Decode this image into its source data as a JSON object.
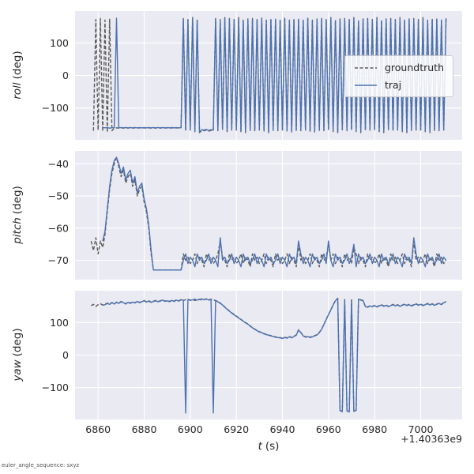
{
  "figure": {
    "background": "#ffffff",
    "axes_background": "#eaeaf2",
    "grid_color": "#ffffff",
    "tick_color": "#262626",
    "footer_note": "euler_angle_sequence: sxyz"
  },
  "legend": {
    "entries": [
      {
        "label": "groundtruth",
        "color": "#5a5a5a",
        "dash": true
      },
      {
        "label": "traj",
        "color": "#4c72b0",
        "dash": false
      }
    ]
  },
  "xaxis": {
    "x0": 6857,
    "dt": 1,
    "xlim": [
      6850,
      7018
    ],
    "xticks": [
      6860,
      6880,
      6900,
      6920,
      6940,
      6960,
      6980,
      7000
    ],
    "label_italic": "t",
    "label_unit": "(s)",
    "offset_text": "+1.40363e9"
  },
  "chart_data": [
    {
      "type": "line",
      "ylabel_italic": "roll",
      "ylabel_unit": "(deg)",
      "ylim": [
        -198,
        198
      ],
      "yticks": [
        100,
        0,
        -100
      ],
      "series": [
        {
          "name": "groundtruth",
          "color": "#5a5a5a",
          "dash": true,
          "y": [
            null,
            -170,
            172,
            -168,
            175,
            -172,
            170,
            -175,
            173,
            -170,
            -162,
            -161,
            -162,
            -161,
            -162,
            -161,
            -162,
            -161,
            -162,
            -161,
            -162,
            -161,
            -162,
            -161,
            -162,
            -161,
            -162,
            -161,
            -162,
            -161,
            -162,
            -161,
            -162,
            -161,
            -162,
            -161,
            -162,
            -161,
            -162,
            -161,
            175,
            -170,
            172,
            -168,
            178,
            -173,
            170,
            -176,
            -169,
            -170,
            -168,
            -171,
            -169,
            -170,
            175,
            -170,
            172,
            -168,
            178,
            -173,
            175,
            -170,
            172,
            -168,
            178,
            -173,
            170,
            -176,
            174,
            -169,
            175,
            -170,
            172,
            -168,
            178,
            -173,
            170,
            -176,
            174,
            -169,
            175,
            -170,
            172,
            -168,
            178,
            -173,
            170,
            -176,
            174,
            -169,
            175,
            -170,
            172,
            -168,
            178,
            -173,
            170,
            -176,
            174,
            -169,
            175,
            -170,
            172,
            -168,
            178,
            -173,
            170,
            -176,
            174,
            -169,
            175,
            -170,
            172,
            -168,
            178,
            -173,
            170,
            -176,
            174,
            -169,
            175,
            -170,
            172,
            -168,
            178,
            -173,
            170,
            -176,
            174,
            -169,
            175,
            -170,
            172,
            -168,
            178,
            -173,
            170,
            -176,
            174,
            -169,
            175,
            -170,
            172,
            -168,
            178,
            -173,
            170,
            -176,
            174,
            -169,
            175,
            -170,
            172,
            -168,
            178
          ]
        },
        {
          "name": "traj",
          "color": "#4c72b0",
          "dash": false,
          "y": [
            null,
            null,
            null,
            null,
            null,
            -160,
            -161,
            -160,
            -162,
            -161,
            -160,
            176,
            -161,
            -160,
            -161,
            -160,
            -161,
            -160,
            -161,
            -160,
            -161,
            -160,
            -161,
            -160,
            -161,
            -160,
            -161,
            -160,
            -161,
            -160,
            -161,
            -160,
            -161,
            -160,
            -161,
            -160,
            -161,
            -160,
            -161,
            -160,
            173,
            -168,
            170,
            -166,
            176,
            -171,
            168,
            -174,
            -167,
            -168,
            -166,
            -169,
            -167,
            -168,
            173,
            -168,
            170,
            -166,
            176,
            -171,
            173,
            -168,
            170,
            -166,
            176,
            -171,
            168,
            -174,
            172,
            -167,
            173,
            -168,
            170,
            -166,
            176,
            -171,
            168,
            -174,
            172,
            -167,
            173,
            -168,
            170,
            -166,
            176,
            -171,
            168,
            -174,
            172,
            -167,
            173,
            -168,
            170,
            -166,
            176,
            -171,
            168,
            -174,
            172,
            -167,
            173,
            -168,
            170,
            -166,
            176,
            -171,
            168,
            -174,
            172,
            -167,
            173,
            -168,
            170,
            -166,
            176,
            -171,
            168,
            -174,
            172,
            -167,
            173,
            -168,
            170,
            -166,
            176,
            -171,
            168,
            -174,
            172,
            -167,
            173,
            -168,
            170,
            -166,
            176,
            -171,
            168,
            -174,
            172,
            -167,
            173,
            -168,
            170,
            -166,
            176,
            -171,
            168,
            -174,
            172,
            -167,
            173,
            -168,
            170,
            -166,
            176
          ]
        }
      ]
    },
    {
      "type": "line",
      "ylabel_italic": "pitch",
      "ylabel_unit": "(deg)",
      "ylim": [
        -76,
        -36
      ],
      "yticks": [
        -40,
        -50,
        -60,
        -70
      ],
      "series": [
        {
          "name": "groundtruth",
          "color": "#5a5a5a",
          "dash": true,
          "y": [
            -64,
            -67,
            -63,
            -68,
            -64,
            -66,
            -62,
            -55,
            -48,
            -43,
            -40,
            -38,
            -41,
            -44,
            -42,
            -46,
            -44,
            -43,
            -47,
            -45,
            -50,
            -48,
            -47,
            -52,
            -55,
            -60,
            -68,
            -73,
            -73,
            -73,
            -73,
            -73,
            -73,
            -73,
            -73,
            -73,
            -73,
            -73,
            -73,
            -73,
            -68,
            -70,
            -69,
            -71,
            -70,
            -68,
            -71,
            -69,
            -70,
            -72,
            -68,
            -70,
            -69,
            -71,
            -70,
            -68,
            -64,
            -69,
            -70,
            -72,
            -68,
            -70,
            -69,
            -71,
            -70,
            -68,
            -71,
            -69,
            -70,
            -72,
            -68,
            -70,
            -69,
            -71,
            -70,
            -68,
            -71,
            -69,
            -70,
            -72,
            -68,
            -70,
            -69,
            -71,
            -70,
            -68,
            -71,
            -69,
            -70,
            -72,
            -65,
            -70,
            -69,
            -71,
            -70,
            -68,
            -71,
            -69,
            -70,
            -72,
            -68,
            -70,
            -69,
            -65,
            -70,
            -68,
            -71,
            -69,
            -70,
            -72,
            -68,
            -70,
            -69,
            -71,
            -66,
            -68,
            -71,
            -69,
            -70,
            -72,
            -68,
            -70,
            -69,
            -71,
            -70,
            -68,
            -71,
            -69,
            -70,
            -72,
            -68,
            -70,
            -69,
            -71,
            -70,
            -68,
            -71,
            -69,
            -70,
            -72,
            -64,
            -70,
            -69,
            -71,
            -70,
            -68,
            -71,
            -69,
            -70,
            -72,
            -68,
            -70,
            -69,
            -71,
            -70
          ]
        },
        {
          "name": "traj",
          "color": "#4c72b0",
          "dash": false,
          "y": [
            null,
            null,
            null,
            null,
            null,
            -64,
            -61,
            -54,
            -47,
            -42,
            -39,
            -38,
            -40,
            -43,
            -41,
            -45,
            -43,
            -42,
            -46,
            -44,
            -49,
            -47,
            -46,
            -51,
            -54,
            -59,
            -67,
            -73,
            -73,
            -73,
            -73,
            -73,
            -73,
            -73,
            -73,
            -73,
            -73,
            -73,
            -73,
            -73,
            -70,
            -68,
            -71,
            -69,
            -70,
            -72,
            -68,
            -70,
            -69,
            -71,
            -70,
            -68,
            -71,
            -69,
            -70,
            -72,
            -63,
            -70,
            -69,
            -71,
            -70,
            -68,
            -71,
            -69,
            -70,
            -72,
            -68,
            -70,
            -69,
            -71,
            -70,
            -68,
            -71,
            -69,
            -70,
            -72,
            -68,
            -70,
            -69,
            -71,
            -70,
            -68,
            -71,
            -69,
            -70,
            -72,
            -68,
            -70,
            -69,
            -71,
            -64,
            -68,
            -71,
            -69,
            -70,
            -72,
            -68,
            -70,
            -69,
            -71,
            -70,
            -68,
            -71,
            -64,
            -70,
            -72,
            -68,
            -70,
            -69,
            -71,
            -70,
            -68,
            -71,
            -69,
            -65,
            -72,
            -68,
            -70,
            -69,
            -71,
            -70,
            -68,
            -71,
            -69,
            -70,
            -72,
            -68,
            -70,
            -69,
            -71,
            -70,
            -68,
            -71,
            -69,
            -70,
            -72,
            -68,
            -70,
            -69,
            -71,
            -63,
            -68,
            -71,
            -69,
            -70,
            -72,
            -68,
            -70,
            -69,
            -71,
            -70,
            -68,
            -71,
            -69,
            -70
          ]
        }
      ]
    },
    {
      "type": "line",
      "ylabel_italic": "yaw",
      "ylabel_unit": "(deg)",
      "ylim": [
        -198,
        198
      ],
      "yticks": [
        100,
        0,
        -100
      ],
      "series": [
        {
          "name": "groundtruth",
          "color": "#5a5a5a",
          "dash": true,
          "y": [
            152,
            156,
            150,
            155,
            158,
            154,
            156,
            160,
            157,
            162,
            158,
            163,
            160,
            165,
            162,
            158,
            163,
            160,
            164,
            161,
            166,
            162,
            165,
            168,
            164,
            167,
            163,
            166,
            168,
            165,
            167,
            170,
            166,
            168,
            165,
            169,
            166,
            170,
            167,
            171,
            168,
            170,
            172,
            169,
            171,
            168,
            170,
            172,
            169,
            171,
            173,
            170,
            172,
            169,
            168,
            165,
            160,
            155,
            148,
            142,
            136,
            130,
            125,
            120,
            115,
            110,
            105,
            100,
            96,
            90,
            85,
            80,
            76,
            72,
            70,
            66,
            64,
            62,
            60,
            58,
            56,
            55,
            54,
            52,
            55,
            53,
            57,
            54,
            58,
            62,
            78,
            70,
            60,
            56,
            58,
            55,
            57,
            60,
            63,
            70,
            80,
            95,
            110,
            125,
            140,
            155,
            168,
            175,
            -170,
            -173,
            172,
            -171,
            -174,
            170,
            -172,
            -169,
            173,
            170,
            168,
            150,
            148,
            152,
            150,
            153,
            149,
            152,
            155,
            151,
            154,
            150,
            153,
            156,
            152,
            155,
            151,
            154,
            157,
            153,
            156,
            152,
            155,
            158,
            154,
            157,
            153,
            156,
            159,
            155,
            158,
            154,
            157,
            160,
            156,
            162,
            165
          ]
        },
        {
          "name": "traj",
          "color": "#4c72b0",
          "dash": false,
          "y": [
            null,
            null,
            null,
            null,
            null,
            153,
            155,
            159,
            156,
            161,
            157,
            162,
            159,
            164,
            161,
            157,
            162,
            159,
            163,
            160,
            165,
            161,
            164,
            167,
            163,
            166,
            162,
            165,
            167,
            164,
            166,
            169,
            165,
            167,
            164,
            168,
            165,
            169,
            166,
            170,
            169,
            -178,
            171,
            168,
            170,
            172,
            169,
            171,
            173,
            170,
            172,
            169,
            171,
            -178,
            168,
            164,
            159,
            154,
            147,
            141,
            135,
            129,
            124,
            119,
            114,
            109,
            104,
            99,
            95,
            89,
            84,
            79,
            75,
            71,
            69,
            65,
            63,
            61,
            59,
            57,
            55,
            54,
            53,
            51,
            54,
            52,
            56,
            53,
            57,
            61,
            77,
            69,
            59,
            55,
            57,
            54,
            56,
            59,
            62,
            69,
            79,
            94,
            109,
            124,
            139,
            154,
            167,
            174,
            -171,
            -174,
            171,
            -172,
            -175,
            169,
            -173,
            -170,
            172,
            169,
            167,
            149,
            147,
            151,
            149,
            152,
            148,
            151,
            154,
            150,
            153,
            149,
            152,
            155,
            151,
            154,
            150,
            153,
            156,
            152,
            155,
            151,
            154,
            157,
            153,
            156,
            152,
            155,
            158,
            154,
            157,
            153,
            156,
            159,
            155,
            161,
            164
          ]
        }
      ]
    }
  ]
}
